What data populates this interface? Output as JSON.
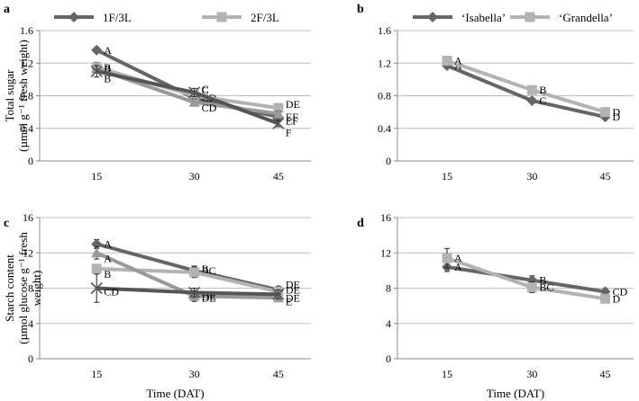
{
  "chart_data": [
    {
      "panel_label": "a",
      "type": "line",
      "ylabel_line1": "Total sugar",
      "ylabel_line2": "(µmol g⁻¹ fresh weight)",
      "xlabel": "",
      "x": [
        15,
        30,
        45
      ],
      "xticks": [
        "15",
        "30",
        "45"
      ],
      "ylim": [
        0,
        1.6
      ],
      "yticks": [
        "0",
        "0.4",
        "0.8",
        "1.2",
        "1.6"
      ],
      "series": [
        {
          "name": "1F/3L",
          "values": [
            1.36,
            0.77,
            0.54
          ],
          "color": "#666666",
          "marker": "diamond",
          "in_legend": true,
          "letters": [
            "A",
            "CD",
            "EF"
          ]
        },
        {
          "name": "2F/3L",
          "values": [
            1.15,
            0.8,
            0.65
          ],
          "color": "#b3b3b3",
          "marker": "square",
          "in_legend": true,
          "letters": [
            "B",
            "C",
            "DE"
          ]
        },
        {
          "name": "",
          "values": [
            1.13,
            0.72,
            0.58
          ],
          "color": "#999999",
          "marker": "triangle",
          "in_legend": false,
          "letters": [
            "B",
            "CD",
            "EF"
          ]
        },
        {
          "name": "",
          "values": [
            1.1,
            0.84,
            0.46
          ],
          "color": "#555555",
          "marker": "x",
          "in_legend": false,
          "letters": [
            "B",
            "C",
            "F"
          ]
        }
      ]
    },
    {
      "panel_label": "b",
      "type": "line",
      "xlabel": "",
      "x": [
        15,
        30,
        45
      ],
      "xticks": [
        "15",
        "30",
        "45"
      ],
      "ylim": [
        0,
        1.6
      ],
      "yticks": [
        "0",
        "0.4",
        "0.8",
        "1.2",
        "1.6"
      ],
      "series": [
        {
          "name": "‘Isabella’",
          "values": [
            1.17,
            0.74,
            0.54
          ],
          "color": "#666666",
          "marker": "diamond",
          "in_legend": true,
          "letters": [
            "A",
            "C",
            "D"
          ]
        },
        {
          "name": "‘Grandella’",
          "values": [
            1.23,
            0.87,
            0.6
          ],
          "color": "#b3b3b3",
          "marker": "square",
          "in_legend": true,
          "letters": [
            "A",
            "B",
            "D"
          ]
        }
      ]
    },
    {
      "panel_label": "c",
      "type": "line",
      "ylabel_line1": "Starch content",
      "ylabel_line2": "(µmol glucose g⁻¹ fresh",
      "ylabel_line3": "weight)",
      "xlabel": "Time (DAT)",
      "x": [
        15,
        30,
        45
      ],
      "xticks": [
        "15",
        "30",
        "45"
      ],
      "ylim": [
        0,
        16
      ],
      "yticks": [
        "0",
        "4",
        "8",
        "12",
        "16"
      ],
      "series": [
        {
          "name": "1F/3L",
          "values": [
            13.0,
            10.0,
            7.8
          ],
          "color": "#666666",
          "marker": "diamond",
          "in_legend": false,
          "letters": [
            "A",
            "BC",
            "DE"
          ]
        },
        {
          "name": "2F/3L",
          "values": [
            10.2,
            9.8,
            7.6
          ],
          "color": "#b3b3b3",
          "marker": "square",
          "in_legend": false,
          "letters": [
            "B",
            "B",
            "DE"
          ]
        },
        {
          "name": "",
          "values": [
            12.0,
            7.1,
            6.9
          ],
          "color": "#999999",
          "marker": "triangle",
          "in_legend": false,
          "letters": [
            "A",
            "DE",
            "E"
          ]
        },
        {
          "name": "",
          "values": [
            8.0,
            7.5,
            7.3
          ],
          "color": "#555555",
          "marker": "x",
          "in_legend": false,
          "letters": [
            "CD",
            "DE",
            "DE"
          ]
        }
      ]
    },
    {
      "panel_label": "d",
      "type": "line",
      "xlabel": "Time (DAT)",
      "x": [
        15,
        30,
        45
      ],
      "xticks": [
        "15",
        "30",
        "45"
      ],
      "ylim": [
        0,
        16
      ],
      "yticks": [
        "0",
        "4",
        "8",
        "12",
        "16"
      ],
      "series": [
        {
          "name": "‘Isabella’",
          "values": [
            10.4,
            8.9,
            7.6
          ],
          "color": "#666666",
          "marker": "diamond",
          "in_legend": false,
          "letters": [
            "A",
            "B",
            "CD"
          ]
        },
        {
          "name": "‘Grandella’",
          "values": [
            11.4,
            8.1,
            6.8
          ],
          "color": "#b3b3b3",
          "marker": "square",
          "in_legend": false,
          "letters": [
            "A",
            "BC",
            "D"
          ]
        }
      ]
    }
  ]
}
